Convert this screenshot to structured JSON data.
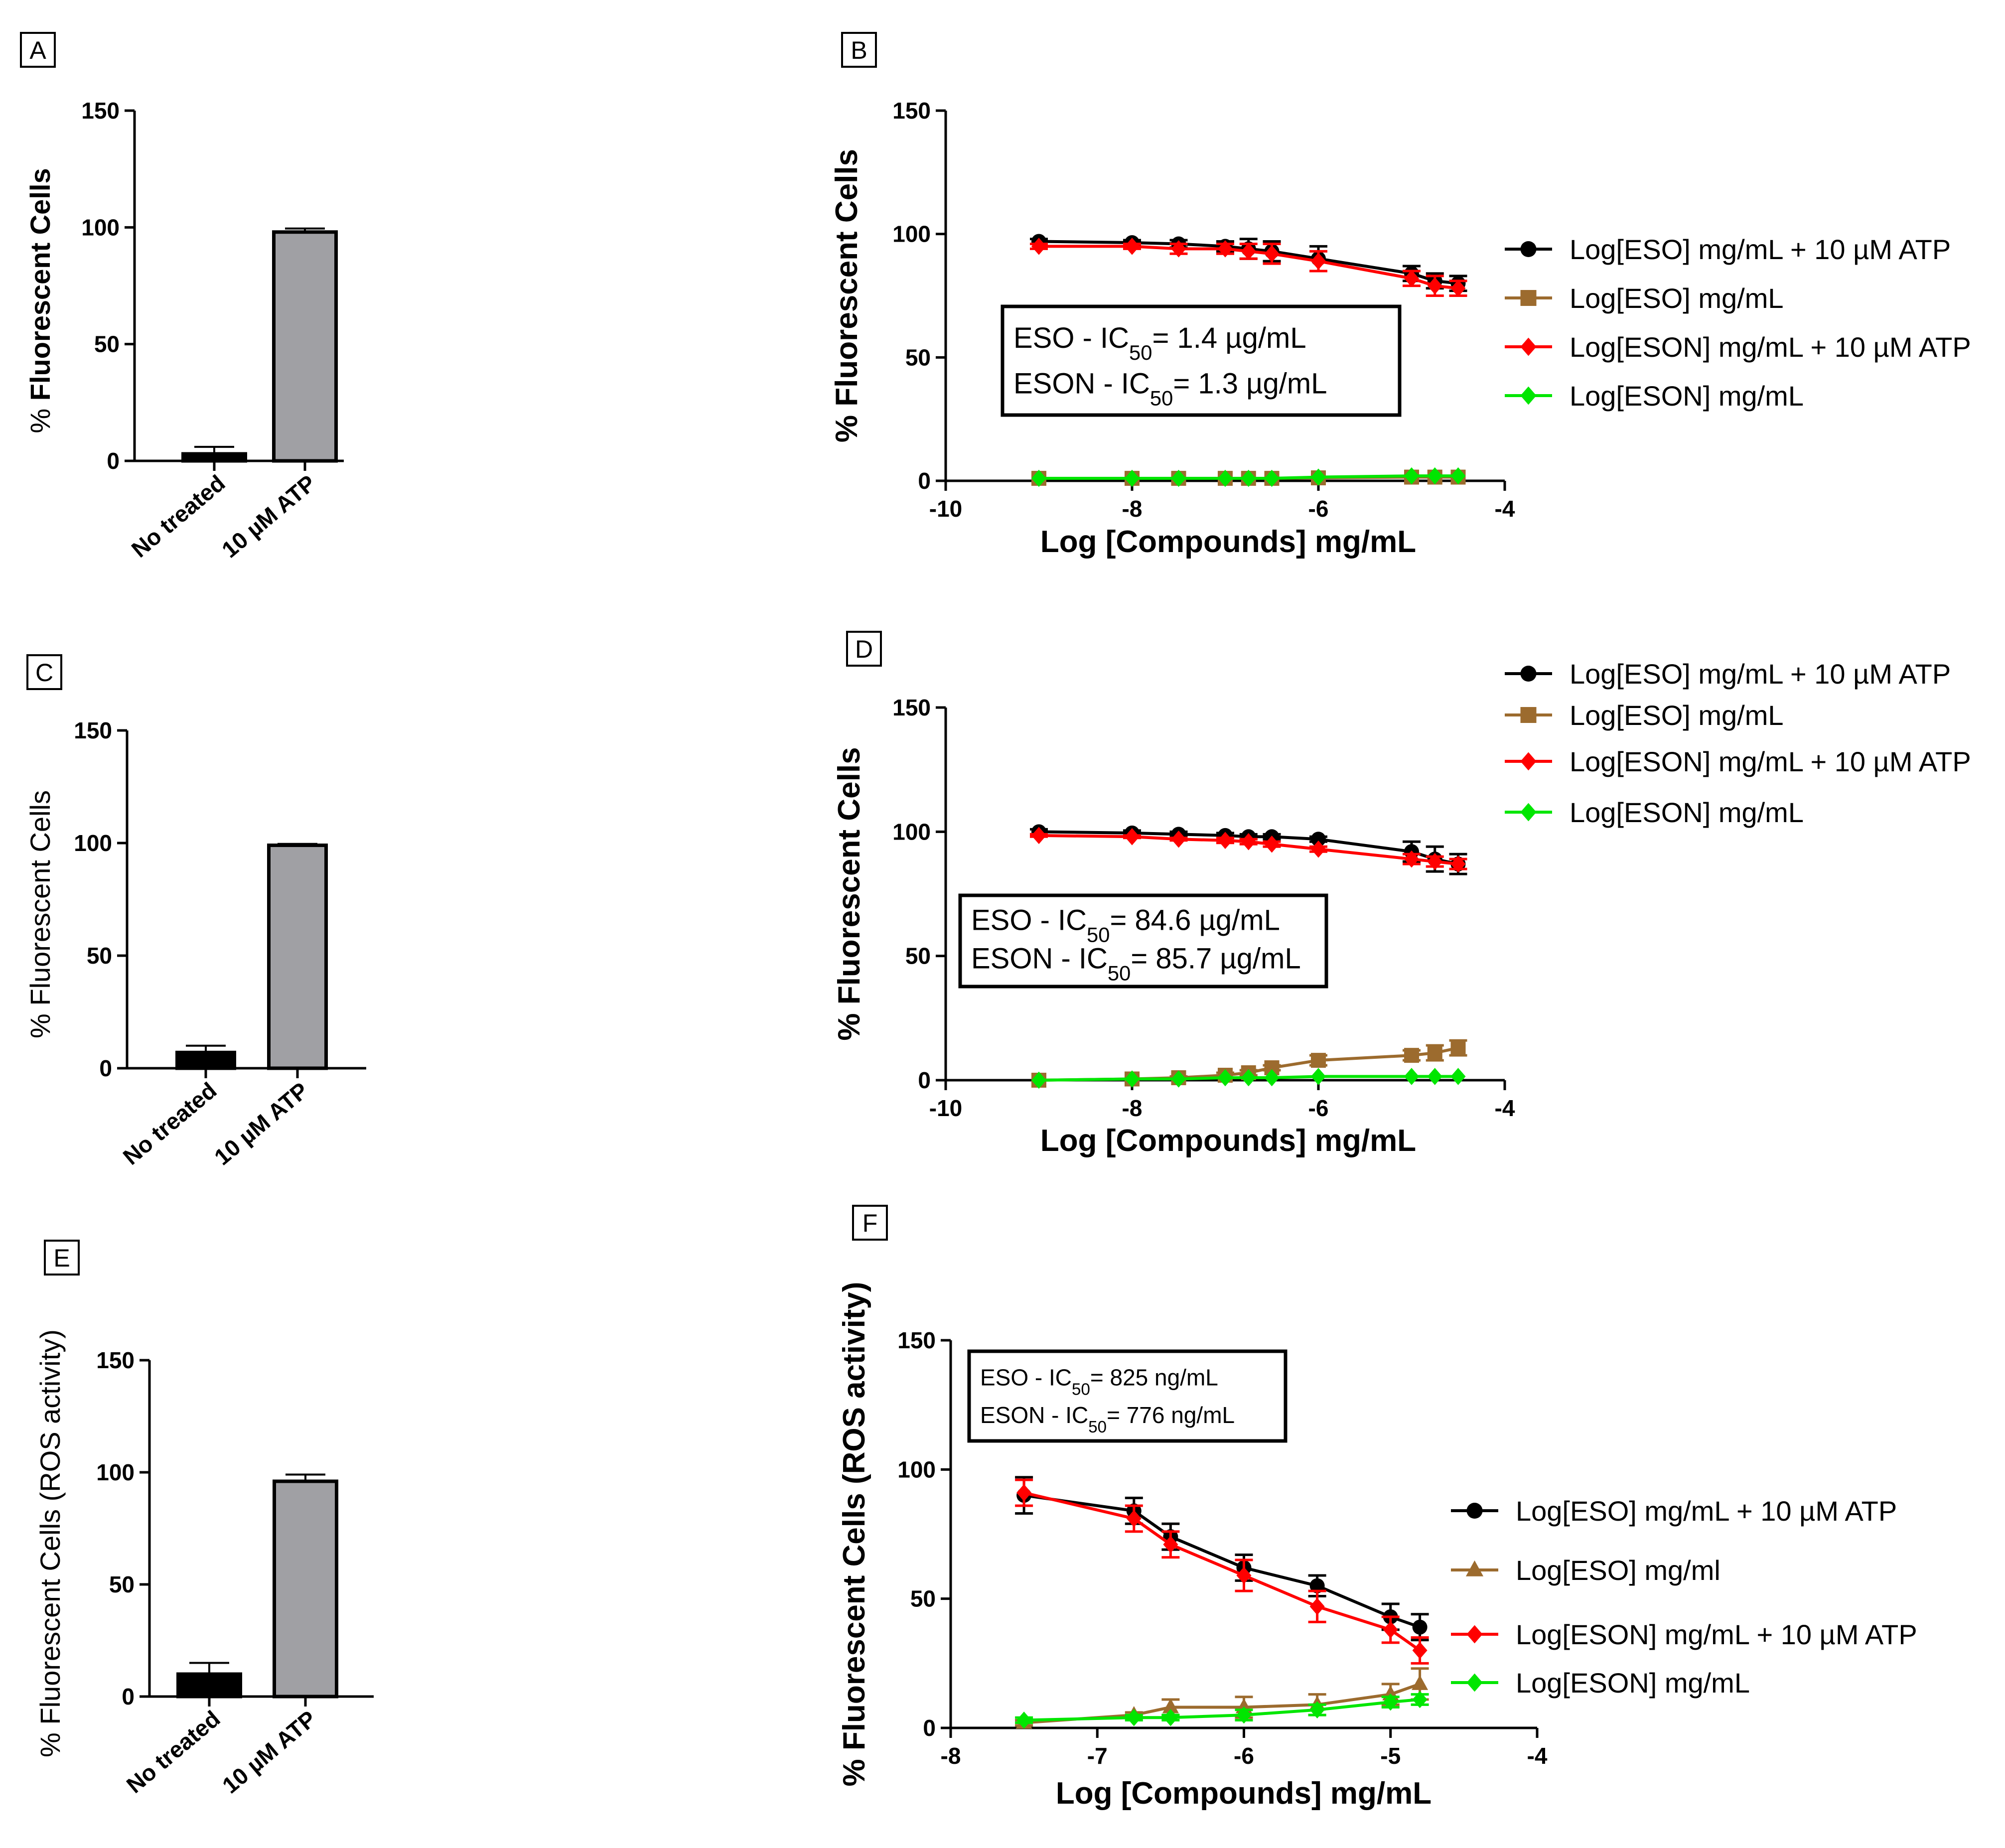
{
  "figure": {
    "panels": [
      "A",
      "B",
      "C",
      "D",
      "E",
      "F"
    ]
  },
  "chart_data": [
    {
      "id": "A",
      "type": "bar",
      "label": "A",
      "ylabel_prefix": "% ",
      "ylabel_bold": "Fluorescent Cells",
      "ylabel_suffix": "",
      "categories": [
        "No treated",
        "10 µM ATP"
      ],
      "values": [
        3,
        98
      ],
      "errors": [
        3,
        1.5
      ],
      "colors": [
        "#000000",
        "#a0a0a4"
      ],
      "ylim": [
        0,
        150
      ],
      "yticks": [
        0,
        50,
        100,
        150
      ]
    },
    {
      "id": "C",
      "type": "bar",
      "label": "C",
      "ylabel_prefix": "% Fluorescent Cells",
      "ylabel_bold": "",
      "ylabel_suffix": "",
      "categories": [
        "No treated",
        "10 µM ATP"
      ],
      "values": [
        7,
        99
      ],
      "errors": [
        3,
        0.6
      ],
      "colors": [
        "#000000",
        "#a0a0a4"
      ],
      "ylim": [
        0,
        150
      ],
      "yticks": [
        0,
        50,
        100,
        150
      ]
    },
    {
      "id": "E",
      "type": "bar",
      "label": "E",
      "ylabel_prefix": "% Fluorescent Cells (ROS activity)",
      "ylabel_bold": "",
      "ylabel_suffix": "",
      "categories": [
        "No treated",
        "10 µM ATP"
      ],
      "values": [
        10,
        96
      ],
      "errors": [
        5,
        3
      ],
      "colors": [
        "#000000",
        "#a0a0a4"
      ],
      "ylim": [
        0,
        150
      ],
      "yticks": [
        0,
        50,
        100,
        150
      ]
    },
    {
      "id": "B",
      "type": "line",
      "label": "B",
      "ylabel": "% Fluorescent Cells",
      "xlabel": "Log [Compounds] mg/mL",
      "xlim": [
        -10,
        -4
      ],
      "ylim": [
        0,
        150
      ],
      "xticks": [
        -10,
        -8,
        -6,
        -4
      ],
      "yticks": [
        0,
        50,
        100,
        150
      ],
      "legend_position": "right",
      "ic50": {
        "lines": [
          {
            "pre": "ESO - IC",
            "sub": "50",
            "post": "= 1.4 µg/mL"
          },
          {
            "pre": "ESON - IC",
            "sub": "50",
            "post": "= 1.3 µg/mL"
          }
        ]
      },
      "series": [
        {
          "name": "Log[ESO] mg/mL + 10 µM ATP",
          "color": "#000000",
          "marker": "circle",
          "x": [
            -9,
            -8,
            -7.5,
            -7,
            -6.75,
            -6.5,
            -6,
            -5,
            -4.75,
            -4.5
          ],
          "y": [
            97,
            96.5,
            96,
            95,
            94,
            93,
            90,
            84,
            81,
            80
          ],
          "err": [
            1,
            1,
            1.5,
            2,
            4,
            4,
            5,
            3,
            3,
            3
          ]
        },
        {
          "name": "Log[ESO] mg/mL",
          "color": "#9c6b2e",
          "marker": "square",
          "x": [
            -9,
            -8,
            -7.5,
            -7,
            -6.75,
            -6.5,
            -6,
            -5,
            -4.75,
            -4.5
          ],
          "y": [
            1,
            1,
            1,
            1,
            1,
            1,
            1.2,
            1.5,
            1.5,
            1.5
          ],
          "err": [
            0,
            0,
            0,
            0,
            0,
            0,
            0,
            0,
            0,
            0
          ]
        },
        {
          "name": "Log[ESON] mg/mL + 10 µM ATP",
          "color": "#ff0000",
          "marker": "diamond",
          "x": [
            -9,
            -8,
            -7.5,
            -7,
            -6.75,
            -6.5,
            -6,
            -5,
            -4.75,
            -4.5
          ],
          "y": [
            95,
            95,
            94,
            94,
            93,
            92,
            89,
            82,
            79,
            78
          ],
          "err": [
            1,
            1,
            2,
            2,
            3,
            4,
            4,
            3,
            4,
            3
          ]
        },
        {
          "name": "Log[ESON] mg/mL",
          "color": "#00e600",
          "marker": "diamond",
          "x": [
            -9,
            -8,
            -7.5,
            -7,
            -6.75,
            -6.5,
            -6,
            -5,
            -4.75,
            -4.5
          ],
          "y": [
            1,
            1,
            1,
            1,
            1,
            1,
            1.5,
            2,
            2,
            2
          ],
          "err": [
            0,
            0,
            0,
            0,
            0,
            0,
            0,
            0,
            0,
            0
          ]
        }
      ]
    },
    {
      "id": "D",
      "type": "line",
      "label": "D",
      "ylabel": "% Fluorescent Cells",
      "xlabel": "Log [Compounds] mg/mL",
      "xlim": [
        -10,
        -4
      ],
      "ylim": [
        0,
        150
      ],
      "xticks": [
        -10,
        -8,
        -6,
        -4
      ],
      "yticks": [
        0,
        50,
        100,
        150
      ],
      "legend_position": "top-right",
      "ic50": {
        "lines": [
          {
            "pre": "ESO - IC",
            "sub": "50",
            "post": "= 84.6 µg/mL"
          },
          {
            "pre": "ESON - IC",
            "sub": "50",
            "post": "= 85.7 µg/mL"
          }
        ]
      },
      "series": [
        {
          "name": "Log[ESO] mg/mL + 10 µM ATP",
          "color": "#000000",
          "marker": "circle",
          "x": [
            -9,
            -8,
            -7.5,
            -7,
            -6.75,
            -6.5,
            -6,
            -5,
            -4.75,
            -4.5
          ],
          "y": [
            100,
            99.5,
            99,
            98.5,
            98,
            98,
            97,
            92,
            89,
            87
          ],
          "err": [
            1,
            1,
            1,
            1,
            1,
            1,
            1,
            4,
            5,
            4
          ]
        },
        {
          "name": "Log[ESO] mg/mL",
          "color": "#9c6b2e",
          "marker": "square",
          "x": [
            -9,
            -8,
            -7.5,
            -7,
            -6.75,
            -6.5,
            -6,
            -5,
            -4.75,
            -4.5
          ],
          "y": [
            0,
            0.5,
            1,
            2,
            3,
            5,
            8,
            10,
            11,
            13
          ],
          "err": [
            0,
            0,
            0.5,
            1,
            1,
            1,
            2,
            2,
            3,
            3
          ]
        },
        {
          "name": "Log[ESON] mg/mL + 10 µM ATP",
          "color": "#ff0000",
          "marker": "diamond",
          "x": [
            -9,
            -8,
            -7.5,
            -7,
            -6.75,
            -6.5,
            -6,
            -5,
            -4.75,
            -4.5
          ],
          "y": [
            98.5,
            98,
            97,
            96.5,
            96,
            95,
            93,
            89,
            88,
            87
          ],
          "err": [
            0.5,
            0.5,
            0.5,
            1,
            1,
            1,
            1,
            2,
            2,
            2
          ]
        },
        {
          "name": "Log[ESON] mg/mL",
          "color": "#00e600",
          "marker": "diamond",
          "x": [
            -9,
            -8,
            -7.5,
            -7,
            -6.75,
            -6.5,
            -6,
            -5,
            -4.75,
            -4.5
          ],
          "y": [
            0,
            0.5,
            0.5,
            1,
            1,
            1,
            1.5,
            1.5,
            1.5,
            1.5
          ],
          "err": [
            0,
            0,
            0,
            0,
            0,
            0,
            0,
            0,
            0,
            0
          ]
        }
      ]
    },
    {
      "id": "F",
      "type": "line",
      "label": "F",
      "ylabel": "% Fluorescent Cells (ROS activity)",
      "xlabel": "Log [Compounds] mg/mL",
      "xlim": [
        -8,
        -4
      ],
      "ylim": [
        0,
        150
      ],
      "xticks": [
        -8,
        -7,
        -6,
        -5,
        -4
      ],
      "yticks": [
        0,
        50,
        100,
        150
      ],
      "legend_position": "right",
      "ic50": {
        "small": true,
        "lines": [
          {
            "pre": "ESO - IC",
            "sub": "50",
            "post": "= 825 ng/mL"
          },
          {
            "pre": "ESON - IC",
            "sub": "50",
            "post": "= 776 ng/mL"
          }
        ]
      },
      "series": [
        {
          "name": "Log[ESO] mg/mL + 10 µM ATP",
          "color": "#000000",
          "marker": "circle",
          "x": [
            -7.5,
            -6.75,
            -6.5,
            -6,
            -5.5,
            -5,
            -4.8
          ],
          "y": [
            90,
            84,
            74,
            62,
            55,
            43,
            39
          ],
          "err": [
            7,
            5,
            5,
            5,
            4,
            5,
            5
          ]
        },
        {
          "name": "Log[ESO] mg/ml",
          "color": "#9c6b2e",
          "marker": "triangle",
          "x": [
            -7.5,
            -6.75,
            -6.5,
            -6,
            -5.5,
            -5,
            -4.8
          ],
          "y": [
            2,
            5,
            8,
            8,
            9,
            13,
            17
          ],
          "err": [
            1,
            1,
            3,
            4,
            4,
            4,
            6
          ]
        },
        {
          "name": "Log[ESON] mg/mL + 10 µM ATP",
          "color": "#ff0000",
          "marker": "diamond",
          "x": [
            -7.5,
            -6.75,
            -6.5,
            -6,
            -5.5,
            -5,
            -4.8
          ],
          "y": [
            91,
            81,
            71,
            59,
            47,
            38,
            30
          ],
          "err": [
            5,
            5,
            5,
            6,
            6,
            5,
            5
          ]
        },
        {
          "name": "Log[ESON] mg/mL",
          "color": "#00e600",
          "marker": "diamond",
          "x": [
            -7.5,
            -6.75,
            -6.5,
            -6,
            -5.5,
            -5,
            -4.8
          ],
          "y": [
            3,
            4,
            4,
            5,
            7,
            10,
            11
          ],
          "err": [
            1,
            1,
            1,
            2,
            2,
            2,
            2
          ]
        }
      ]
    }
  ]
}
